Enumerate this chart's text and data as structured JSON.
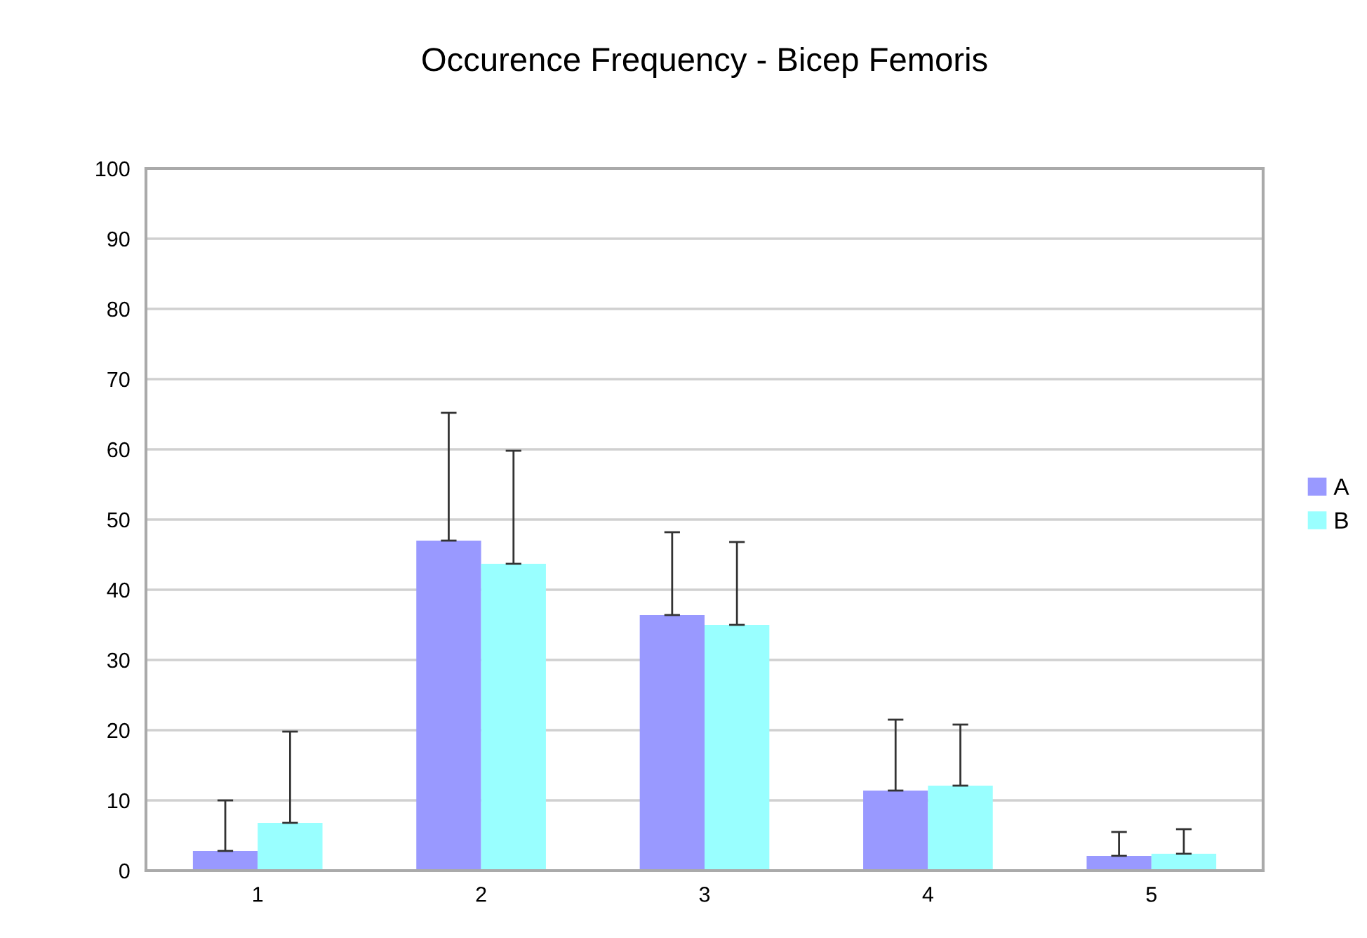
{
  "chart_data": {
    "type": "bar",
    "title": "Occurence Frequency - Bicep Femoris",
    "categories": [
      "1",
      "2",
      "3",
      "4",
      "5"
    ],
    "series": [
      {
        "name": "A",
        "color": "#9999ff",
        "values": [
          2.8,
          47,
          36.4,
          11.4,
          2.1
        ],
        "errors": [
          [
            2.8,
            10
          ],
          [
            47,
            65.2
          ],
          [
            36.4,
            48.2
          ],
          [
            11.4,
            21.5
          ],
          [
            2.1,
            5.5
          ]
        ]
      },
      {
        "name": "B",
        "color": "#99ffff",
        "values": [
          6.8,
          43.7,
          35,
          12.1,
          2.4
        ],
        "errors": [
          [
            6.8,
            19.8
          ],
          [
            43.7,
            59.8
          ],
          [
            35,
            46.8
          ],
          [
            12.1,
            20.8
          ],
          [
            2.4,
            5.9
          ]
        ]
      }
    ],
    "ylim": [
      0,
      100
    ],
    "yticks": [
      0,
      10,
      20,
      30,
      40,
      50,
      60,
      70,
      80,
      90,
      100
    ],
    "grid": "y",
    "legend": "right"
  }
}
